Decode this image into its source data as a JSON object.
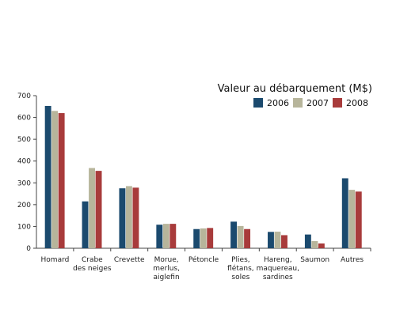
{
  "chart_data": {
    "type": "bar",
    "title": "Valeur au débarquement (M$)",
    "xlabel": "",
    "ylabel": "",
    "ylim": [
      0,
      700
    ],
    "yticks": [
      0,
      100,
      200,
      300,
      400,
      500,
      600,
      700
    ],
    "grid": false,
    "legend_position": "top-right",
    "categories": [
      [
        "Homard"
      ],
      [
        "Crabe",
        "des neiges"
      ],
      [
        "Crevette"
      ],
      [
        "Morue,",
        "merlus,",
        "aiglefin"
      ],
      [
        "Pétoncle"
      ],
      [
        "Plies,",
        "flétans,",
        "soles"
      ],
      [
        "Hareng,",
        "maquereau,",
        "sardines"
      ],
      [
        "Saumon"
      ],
      [
        "Autres"
      ]
    ],
    "series": [
      {
        "name": "2006",
        "color": "#1b4a6e",
        "values": [
          653,
          215,
          275,
          108,
          88,
          122,
          75,
          63,
          321
        ]
      },
      {
        "name": "2007",
        "color": "#b7b59b",
        "values": [
          630,
          368,
          285,
          112,
          91,
          102,
          76,
          33,
          268
        ]
      },
      {
        "name": "2008",
        "color": "#a83b3b",
        "values": [
          620,
          355,
          278,
          112,
          93,
          88,
          60,
          22,
          260
        ]
      }
    ]
  }
}
